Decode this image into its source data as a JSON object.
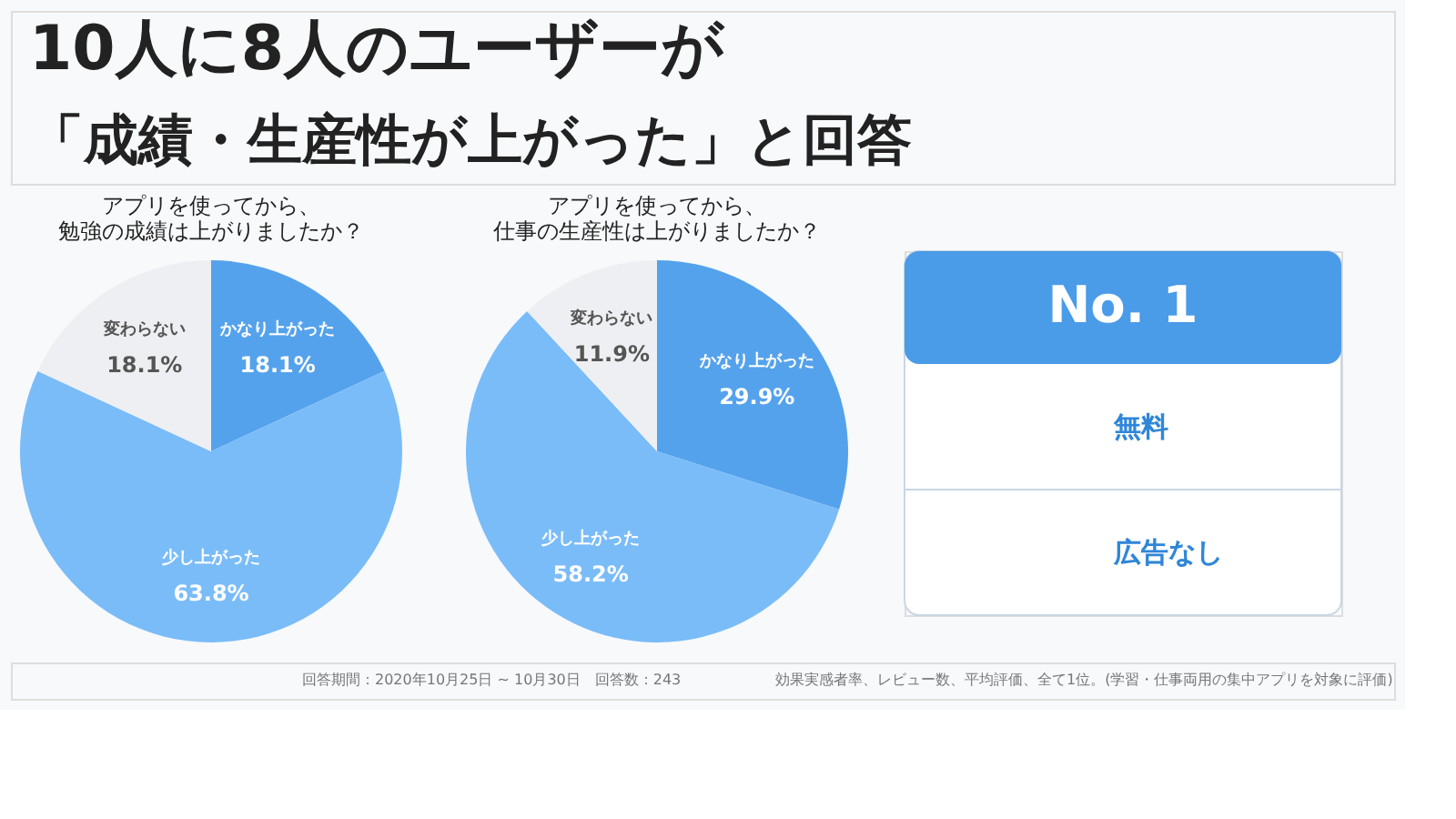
{
  "chart_data": [
    {
      "type": "other",
      "title": "10人に8人のユーザーが",
      "subtitle": "「成績・生産性が上がった」と回答",
      "annotations": [
        "回答期間：2020年10月25日 ~ 10月30日　回答数：243",
        "効果実感者率、レビュー数、平均評価、全て1位。(学習・仕事両用の集中アプリを対象に評価)"
      ]
    },
    {
      "type": "pie",
      "title": "アプリを使ってから、勉強の成績は上がりましたか？",
      "categories": [
        "かなり上がった",
        "少し上がった",
        "変わらない"
      ],
      "values": [
        18.1,
        63.8,
        18.1
      ],
      "value_labels": [
        "18.1%",
        "63.8%",
        "18.1%"
      ],
      "colors": [
        "#55a2ec",
        "#7abcf8",
        "#eeeff2"
      ]
    },
    {
      "type": "pie",
      "title": "アプリを使ってから、仕事の生産性は上がりましたか？",
      "categories": [
        "かなり上がった",
        "少し上がった",
        "変わらない"
      ],
      "values": [
        29.9,
        58.2,
        11.9
      ],
      "value_labels": [
        "29.9%",
        "58.2%",
        "11.9%"
      ],
      "colors": [
        "#55a2ec",
        "#7abcf8",
        "#eeeff2"
      ]
    },
    {
      "type": "other",
      "title": "No. 1",
      "annotations": [
        "無料",
        "広告なし"
      ]
    }
  ]
}
